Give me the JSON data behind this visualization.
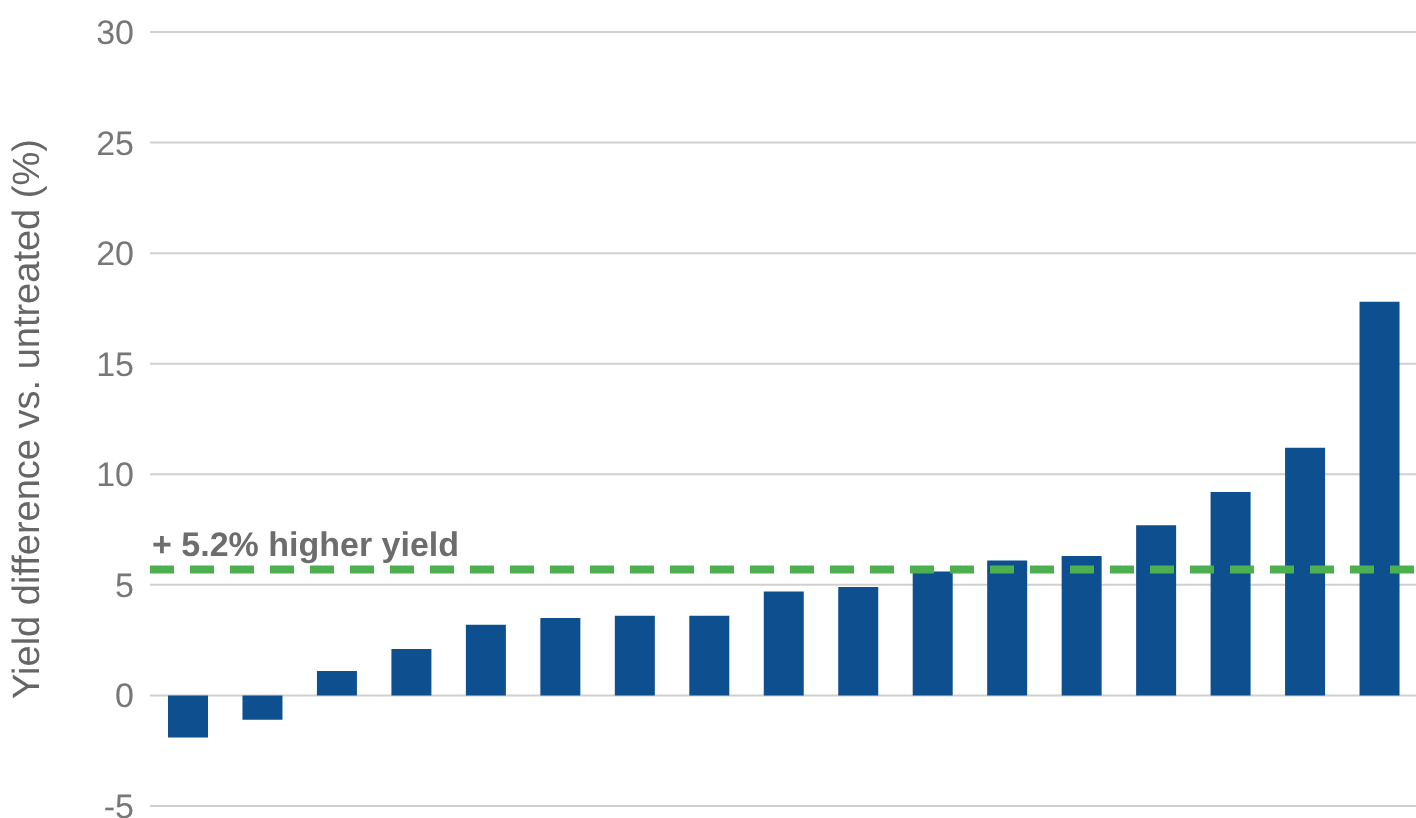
{
  "chart_data": {
    "type": "bar",
    "ylabel": "Yield difference vs. untreated (%)",
    "categories": [
      null,
      null,
      null,
      null,
      null,
      null,
      null,
      null,
      null,
      null,
      null,
      null,
      null,
      null,
      null,
      null,
      null
    ],
    "values": [
      -1.9,
      -1.1,
      1.1,
      2.1,
      3.2,
      3.5,
      3.6,
      3.6,
      4.7,
      4.9,
      5.6,
      6.1,
      6.3,
      7.7,
      9.2,
      11.2,
      17.8
    ],
    "color": "#0e4f8f",
    "ylim": [
      -5,
      30
    ],
    "yticks": [
      -5,
      0,
      5,
      10,
      15,
      20,
      25,
      30
    ],
    "grid": "y",
    "tick_labels": "y",
    "ref_lines": [
      {
        "axis": "y",
        "value": 5.7,
        "label": "+ 5.2% higher yield",
        "color": "#4caf50",
        "line_style": "dashed"
      }
    ]
  }
}
